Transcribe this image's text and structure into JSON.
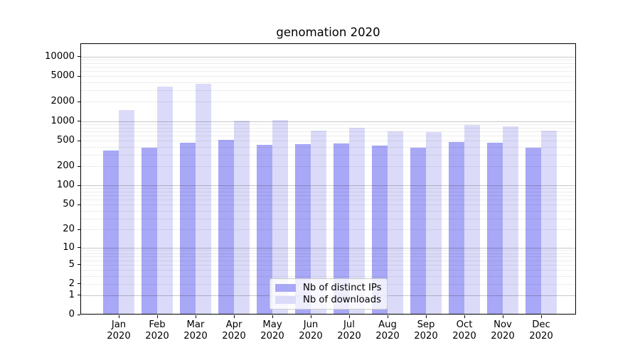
{
  "chart_data": {
    "type": "bar",
    "title": "genomation 2020",
    "yscale": "log1p (log axis with 0 baseline)",
    "categories": [
      "Jan 2020",
      "Feb 2020",
      "Mar 2020",
      "Apr 2020",
      "May 2020",
      "Jun 2020",
      "Jul 2020",
      "Aug 2020",
      "Sep 2020",
      "Oct 2020",
      "Nov 2020",
      "Dec 2020"
    ],
    "series": [
      {
        "name": "Nb of distinct IPs",
        "color": "#a8a8f6",
        "values": [
          350,
          390,
          460,
          510,
          430,
          445,
          450,
          420,
          385,
          475,
          465,
          390
        ]
      },
      {
        "name": "Nb of downloads",
        "color": "#dbdbf9",
        "values": [
          1500,
          3400,
          3800,
          1010,
          1050,
          710,
          790,
          690,
          685,
          880,
          835,
          705
        ]
      }
    ],
    "yticks": [
      10000,
      5000,
      2000,
      1000,
      500,
      200,
      100,
      50,
      20,
      10,
      5,
      2,
      1,
      0
    ],
    "ylim": [
      0,
      16000
    ],
    "xlabel": "",
    "ylabel": "",
    "grid": "major and minor horizontal gridlines, drawn above bars",
    "legend_position": "inside lower-center"
  },
  "colors": {
    "background": "#ffffff",
    "spine": "#000000",
    "grid_major": "#bfbfbf",
    "grid_minor": "#ededed",
    "legend_border": "#cccccc"
  }
}
